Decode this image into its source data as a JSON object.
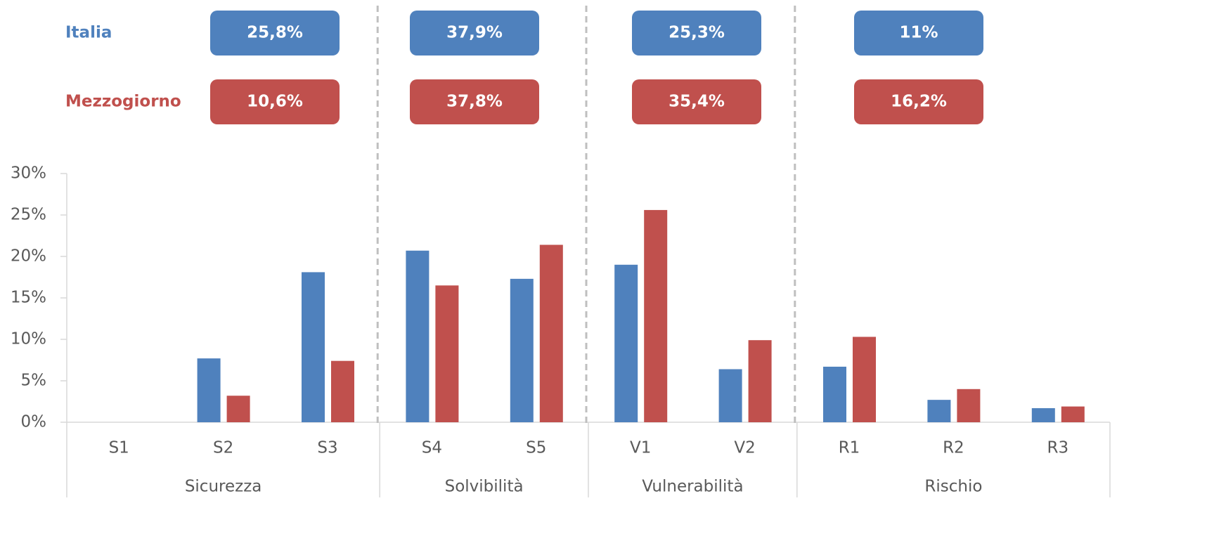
{
  "chart_data": {
    "type": "bar",
    "categories": [
      "S1",
      "S2",
      "S3",
      "S4",
      "S5",
      "V1",
      "V2",
      "R1",
      "R2",
      "R3"
    ],
    "groups": [
      {
        "name": "Sicurezza",
        "span": 3
      },
      {
        "name": "Solvibilità",
        "span": 2
      },
      {
        "name": "Vulnerabilità",
        "span": 2
      },
      {
        "name": "Rischio",
        "span": 3
      }
    ],
    "series": [
      {
        "name": "Italia",
        "color": "#4f81bd",
        "values": [
          0,
          7.7,
          18.1,
          20.7,
          17.3,
          19.0,
          6.4,
          6.7,
          2.7,
          1.7
        ],
        "summary_values": [
          25.8,
          37.9,
          25.3,
          11
        ],
        "summary_labels": [
          "25,8%",
          "37,9%",
          "25,3%",
          "11%"
        ]
      },
      {
        "name": "Mezzogiorno",
        "color": "#c0504d",
        "values": [
          0,
          3.2,
          7.4,
          16.5,
          21.4,
          25.6,
          9.9,
          10.3,
          4.0,
          1.9
        ],
        "summary_values": [
          10.6,
          37.8,
          35.4,
          16.2
        ],
        "summary_labels": [
          "10,6%",
          "37,8%",
          "35,4%",
          "16,2%"
        ]
      }
    ],
    "ylim": [
      0,
      30
    ],
    "yticks": [
      {
        "value": 0,
        "label": "0%"
      },
      {
        "value": 5,
        "label": "5%"
      },
      {
        "value": 10,
        "label": "10%"
      },
      {
        "value": 15,
        "label": "15%"
      },
      {
        "value": 20,
        "label": "20%"
      },
      {
        "value": 25,
        "label": "25%"
      },
      {
        "value": 30,
        "label": "30%"
      }
    ]
  }
}
